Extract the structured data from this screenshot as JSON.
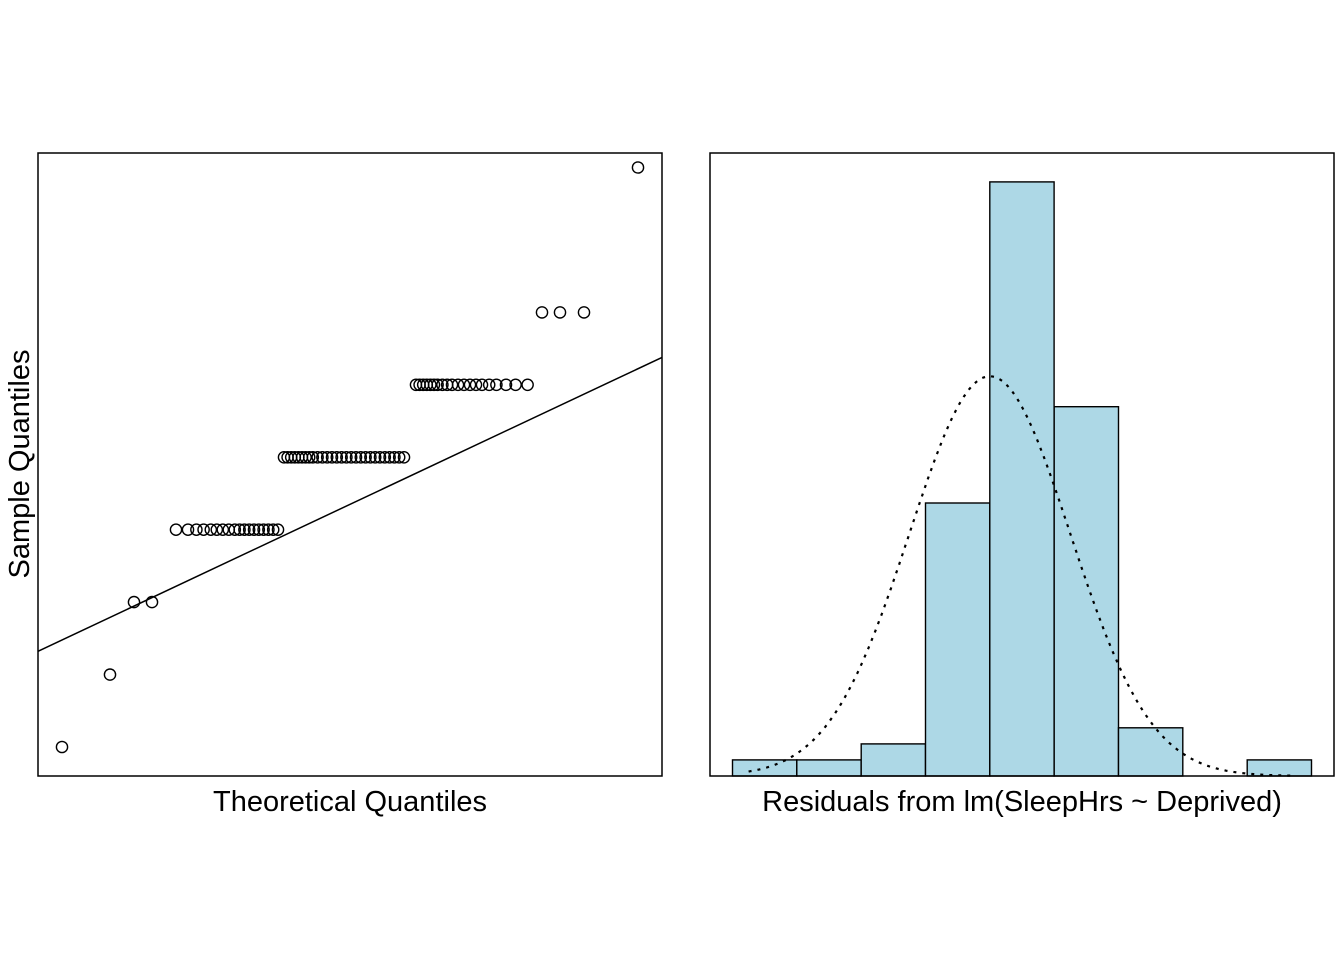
{
  "colors": {
    "background": "#ffffff",
    "ink": "#000000",
    "bar_fill": "#add8e6"
  },
  "chart_data": [
    {
      "type": "scatter",
      "subtype": "qq-plot",
      "title": "",
      "xlabel": "Theoretical Quantiles",
      "ylabel": "Sample Quantiles",
      "axes_ticks_shown": false,
      "xlim": [
        -2.6,
        2.6
      ],
      "ylim": [
        -3.4,
        5.2
      ],
      "reference_line": {
        "intercept": 0.35,
        "slope": 0.78
      },
      "sample_levels": [
        -3,
        -2,
        -1,
        0,
        1,
        2,
        3,
        5
      ],
      "points": [
        {
          "x": -2.4,
          "y": -3
        },
        {
          "x": -2.0,
          "y": -2
        },
        {
          "x": -1.8,
          "y": -1
        },
        {
          "x": -1.65,
          "y": -1
        },
        {
          "x": -1.45,
          "y": 0
        },
        {
          "x": -1.35,
          "y": 0
        },
        {
          "x": -1.28,
          "y": 0
        },
        {
          "x": -1.22,
          "y": 0
        },
        {
          "x": -1.16,
          "y": 0
        },
        {
          "x": -1.11,
          "y": 0
        },
        {
          "x": -1.06,
          "y": 0
        },
        {
          "x": -1.01,
          "y": 0
        },
        {
          "x": -0.96,
          "y": 0
        },
        {
          "x": -0.92,
          "y": 0
        },
        {
          "x": -0.88,
          "y": 0
        },
        {
          "x": -0.84,
          "y": 0
        },
        {
          "x": -0.8,
          "y": 0
        },
        {
          "x": -0.76,
          "y": 0
        },
        {
          "x": -0.72,
          "y": 0
        },
        {
          "x": -0.68,
          "y": 0
        },
        {
          "x": -0.64,
          "y": 0
        },
        {
          "x": -0.6,
          "y": 0
        },
        {
          "x": -0.55,
          "y": 1
        },
        {
          "x": -0.52,
          "y": 1
        },
        {
          "x": -0.49,
          "y": 1
        },
        {
          "x": -0.46,
          "y": 1
        },
        {
          "x": -0.43,
          "y": 1
        },
        {
          "x": -0.4,
          "y": 1
        },
        {
          "x": -0.37,
          "y": 1
        },
        {
          "x": -0.34,
          "y": 1
        },
        {
          "x": -0.31,
          "y": 1
        },
        {
          "x": -0.27,
          "y": 1
        },
        {
          "x": -0.23,
          "y": 1
        },
        {
          "x": -0.19,
          "y": 1
        },
        {
          "x": -0.15,
          "y": 1
        },
        {
          "x": -0.11,
          "y": 1
        },
        {
          "x": -0.07,
          "y": 1
        },
        {
          "x": -0.03,
          "y": 1
        },
        {
          "x": 0.01,
          "y": 1
        },
        {
          "x": 0.05,
          "y": 1
        },
        {
          "x": 0.09,
          "y": 1
        },
        {
          "x": 0.13,
          "y": 1
        },
        {
          "x": 0.17,
          "y": 1
        },
        {
          "x": 0.21,
          "y": 1
        },
        {
          "x": 0.25,
          "y": 1
        },
        {
          "x": 0.29,
          "y": 1
        },
        {
          "x": 0.33,
          "y": 1
        },
        {
          "x": 0.37,
          "y": 1
        },
        {
          "x": 0.41,
          "y": 1
        },
        {
          "x": 0.45,
          "y": 1
        },
        {
          "x": 0.55,
          "y": 2
        },
        {
          "x": 0.58,
          "y": 2
        },
        {
          "x": 0.61,
          "y": 2
        },
        {
          "x": 0.64,
          "y": 2
        },
        {
          "x": 0.67,
          "y": 2
        },
        {
          "x": 0.7,
          "y": 2
        },
        {
          "x": 0.73,
          "y": 2
        },
        {
          "x": 0.77,
          "y": 2
        },
        {
          "x": 0.81,
          "y": 2
        },
        {
          "x": 0.85,
          "y": 2
        },
        {
          "x": 0.9,
          "y": 2
        },
        {
          "x": 0.95,
          "y": 2
        },
        {
          "x": 1.0,
          "y": 2
        },
        {
          "x": 1.05,
          "y": 2
        },
        {
          "x": 1.1,
          "y": 2
        },
        {
          "x": 1.16,
          "y": 2
        },
        {
          "x": 1.22,
          "y": 2
        },
        {
          "x": 1.3,
          "y": 2
        },
        {
          "x": 1.38,
          "y": 2
        },
        {
          "x": 1.48,
          "y": 2
        },
        {
          "x": 1.6,
          "y": 3
        },
        {
          "x": 1.75,
          "y": 3
        },
        {
          "x": 1.95,
          "y": 3
        },
        {
          "x": 2.4,
          "y": 5
        }
      ]
    },
    {
      "type": "bar",
      "subtype": "histogram",
      "title": "",
      "xlabel": "Residuals from lm(SleepHrs ~ Deprived)",
      "ylabel": "",
      "axes_ticks_shown": false,
      "bin_edges": [
        -4,
        -3,
        -2,
        -1,
        0,
        1,
        2,
        3,
        4,
        5
      ],
      "counts": [
        1,
        1,
        2,
        17,
        37,
        23,
        3,
        0,
        1
      ],
      "xlim": [
        -4.35,
        5.35
      ],
      "ylim": [
        0,
        38.8
      ],
      "normal_curve": {
        "style": "dotted",
        "mean": 0,
        "sd": 1.25,
        "scale": 78
      }
    }
  ]
}
